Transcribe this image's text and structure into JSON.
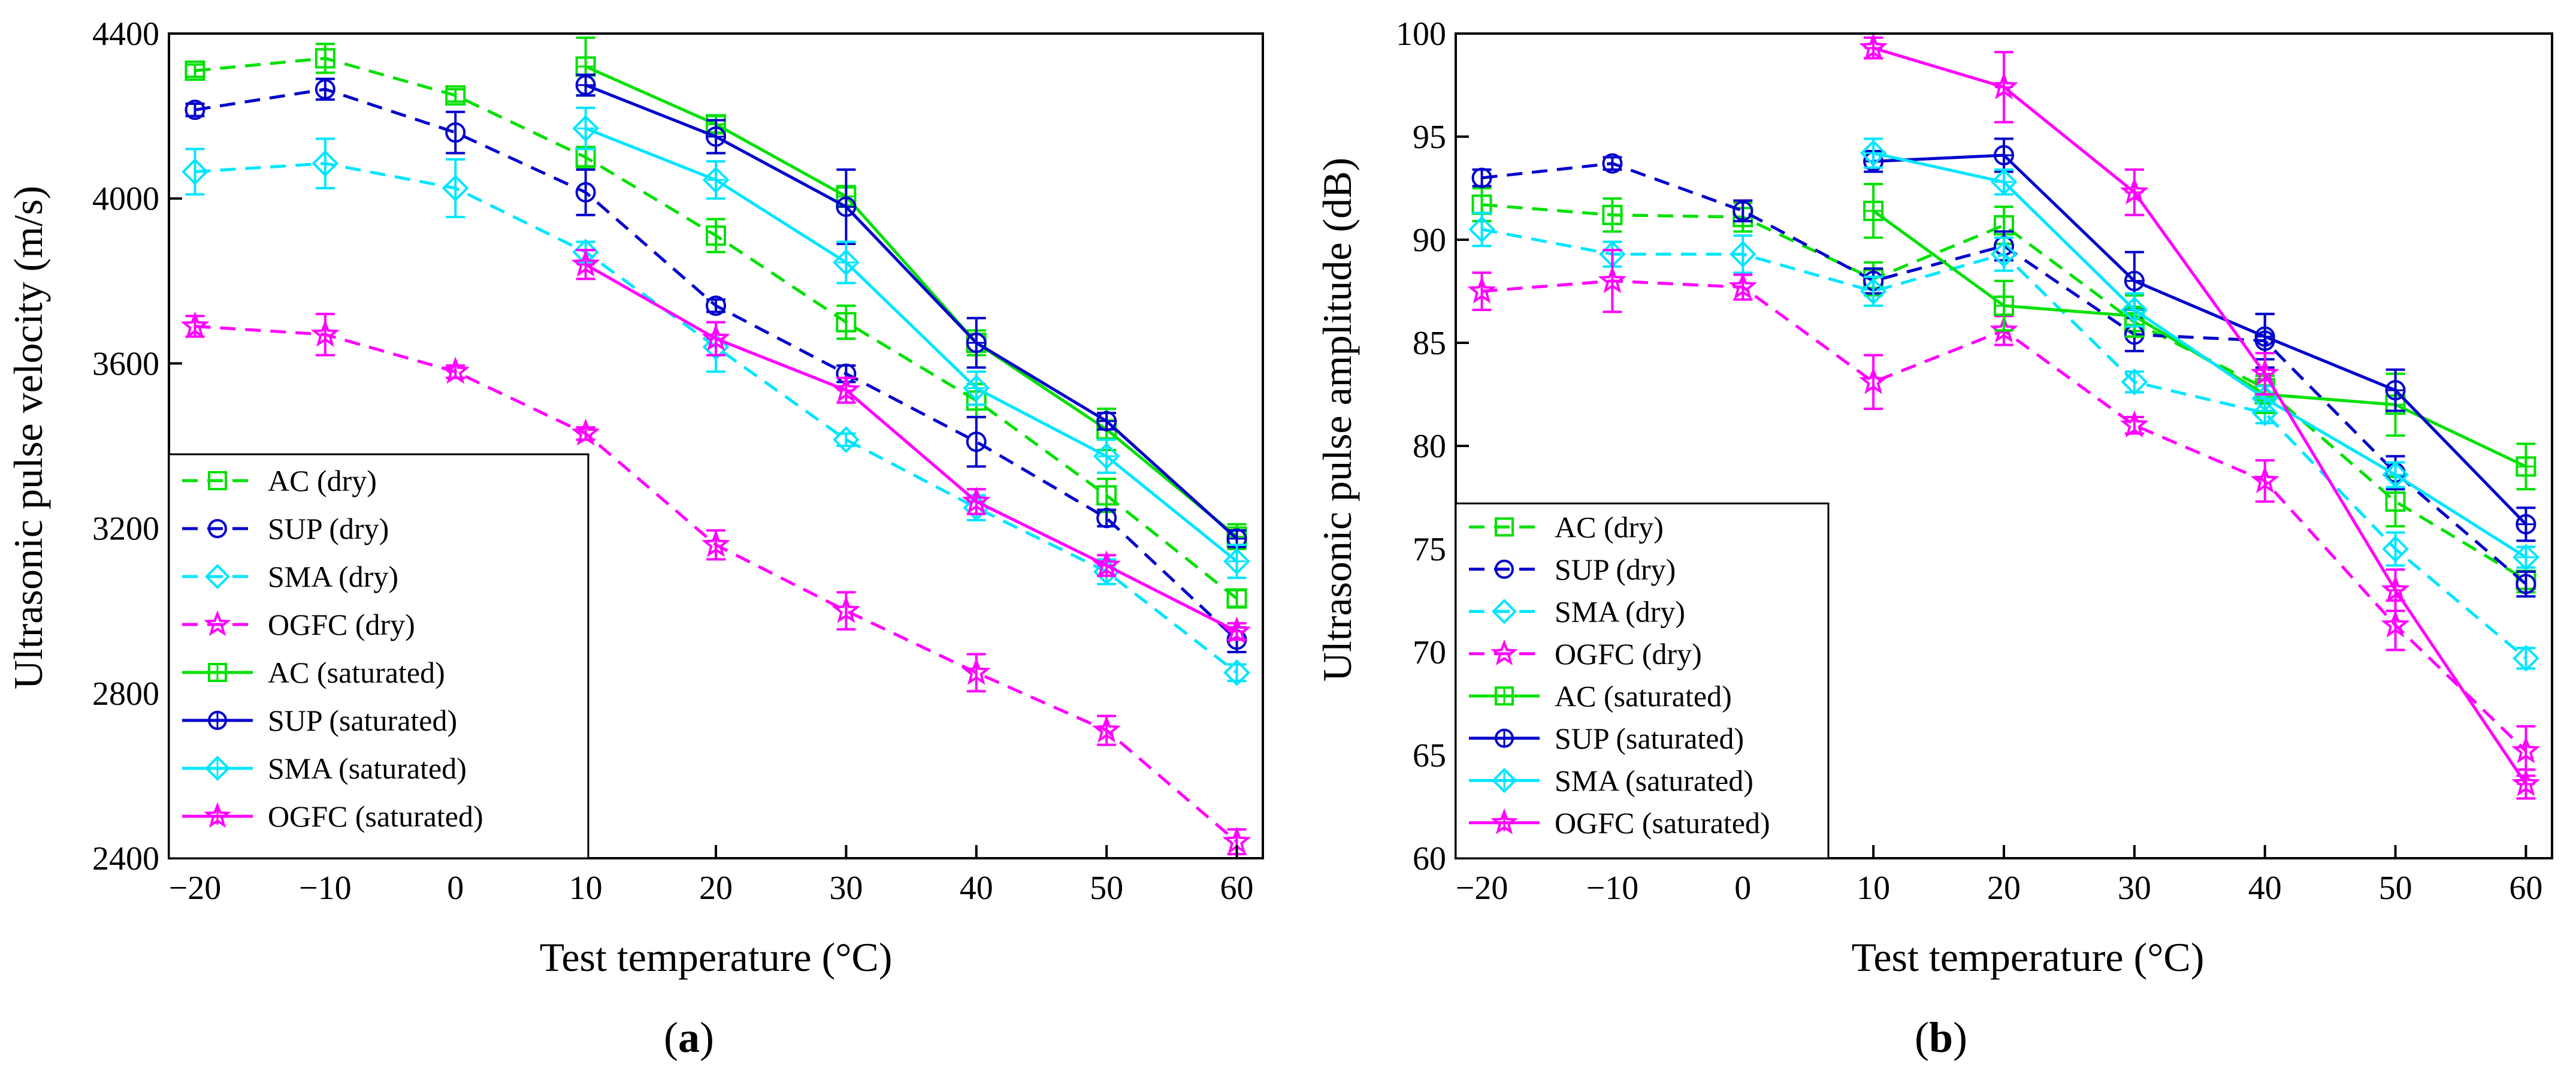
{
  "panels": [
    {
      "caption_open": "(",
      "caption_letter": "a",
      "caption_close": ")",
      "legend_entries": [
        {
          "label": "AC (dry)"
        },
        {
          "label": "SUP (dry)"
        },
        {
          "label": "SMA (dry)"
        },
        {
          "label": "OGFC (dry)"
        },
        {
          "label": "AC (saturated)"
        },
        {
          "label": "SUP (saturated)"
        },
        {
          "label": "SMA (saturated)"
        },
        {
          "label": "OGFC (saturated)"
        }
      ]
    },
    {
      "caption_open": "(",
      "caption_letter": "b",
      "caption_close": ")",
      "legend_entries": [
        {
          "label": "AC (dry)"
        },
        {
          "label": "SUP (dry)"
        },
        {
          "label": "SMA (dry)"
        },
        {
          "label": "OGFC (dry)"
        },
        {
          "label": "AC (saturated)"
        },
        {
          "label": "SUP (saturated)"
        },
        {
          "label": "SMA (saturated)"
        },
        {
          "label": "OGFC (saturated)"
        }
      ]
    }
  ],
  "colors": {
    "AC": "#00e000",
    "SUP": "#0000cc",
    "SMA": "#00e5ff",
    "OGFC": "#ff00ff"
  },
  "chart_data": [
    {
      "type": "line",
      "title": "",
      "xlabel": "Test temperature (°C)",
      "ylabel": "Ultrasonic pulse velocity (m/s)",
      "xlim": [
        -22,
        62
      ],
      "ylim": [
        2400,
        4400
      ],
      "xticks": [
        -20,
        -10,
        0,
        10,
        20,
        30,
        40,
        50,
        60
      ],
      "yticks": [
        2400,
        2800,
        3200,
        3600,
        4000,
        4400
      ],
      "xtick_labels": [
        "−20",
        "−10",
        "0",
        "10",
        "20",
        "30",
        "40",
        "50",
        "60"
      ],
      "ytick_labels": [
        "2400",
        "2800",
        "3200",
        "3600",
        "4000",
        "4400"
      ],
      "legend_position": "bottom-left",
      "series": [
        {
          "name": "AC (dry)",
          "mix": "AC",
          "dash": true,
          "marker": "square",
          "x": [
            -20,
            -10,
            0,
            10,
            20,
            30,
            40,
            50,
            60
          ],
          "y": [
            4310,
            4340,
            4250,
            4100,
            3910,
            3700,
            3510,
            3280,
            3030
          ],
          "err": [
            15,
            35,
            15,
            25,
            40,
            40,
            40,
            40,
            20
          ]
        },
        {
          "name": "SUP (dry)",
          "mix": "SUP",
          "dash": true,
          "marker": "circle",
          "x": [
            -20,
            -10,
            0,
            10,
            20,
            30,
            40,
            50,
            60
          ],
          "y": [
            4215,
            4265,
            4160,
            4015,
            3740,
            3575,
            3410,
            3225,
            2930
          ],
          "err": [
            15,
            25,
            50,
            55,
            15,
            20,
            60,
            20,
            30
          ]
        },
        {
          "name": "SMA (dry)",
          "mix": "SMA",
          "dash": true,
          "marker": "diamond",
          "x": [
            -20,
            -10,
            0,
            10,
            20,
            30,
            40,
            50,
            60
          ],
          "y": [
            4065,
            4085,
            4025,
            3870,
            3640,
            3415,
            3250,
            3095,
            2850
          ],
          "err": [
            55,
            60,
            70,
            25,
            60,
            15,
            30,
            30,
            20
          ]
        },
        {
          "name": "OGFC (dry)",
          "mix": "OGFC",
          "dash": true,
          "marker": "star",
          "x": [
            -20,
            -10,
            0,
            10,
            20,
            30,
            40,
            50,
            60
          ],
          "y": [
            3690,
            3670,
            3580,
            3430,
            3160,
            3000,
            2850,
            2710,
            2440
          ],
          "err": [
            25,
            50,
            15,
            15,
            35,
            45,
            45,
            35,
            30
          ]
        },
        {
          "name": "AC (saturated)",
          "mix": "AC",
          "dash": false,
          "marker": "square-cross",
          "x": [
            10,
            20,
            30,
            40,
            50,
            60
          ],
          "y": [
            4320,
            4180,
            4005,
            3650,
            3440,
            3180
          ],
          "err": [
            70,
            20,
            25,
            30,
            50,
            30
          ]
        },
        {
          "name": "SUP (saturated)",
          "mix": "SUP",
          "dash": false,
          "marker": "circle-cross",
          "x": [
            10,
            20,
            30,
            40,
            50,
            60
          ],
          "y": [
            4275,
            4150,
            3980,
            3650,
            3460,
            3175
          ],
          "err": [
            25,
            40,
            90,
            60,
            20,
            20
          ]
        },
        {
          "name": "SMA (saturated)",
          "mix": "SMA",
          "dash": false,
          "marker": "diamond-cross",
          "x": [
            10,
            20,
            30,
            40,
            50,
            60
          ],
          "y": [
            4170,
            4045,
            3845,
            3540,
            3375,
            3120
          ],
          "err": [
            50,
            45,
            50,
            40,
            40,
            40
          ]
        },
        {
          "name": "OGFC (saturated)",
          "mix": "OGFC",
          "dash": false,
          "marker": "star-cross",
          "x": [
            10,
            20,
            30,
            40,
            50,
            60
          ],
          "y": [
            3840,
            3660,
            3535,
            3265,
            3110,
            2950
          ],
          "err": [
            35,
            40,
            30,
            30,
            25,
            20
          ]
        }
      ]
    },
    {
      "type": "line",
      "title": "",
      "xlabel": "Test temperature (°C)",
      "ylabel": "Ultrasonic pulse amplitude (dB)",
      "xlim": [
        -22,
        62
      ],
      "ylim": [
        60,
        100
      ],
      "xticks": [
        -20,
        -10,
        0,
        10,
        20,
        30,
        40,
        50,
        60
      ],
      "yticks": [
        60,
        65,
        70,
        75,
        80,
        85,
        90,
        95,
        100
      ],
      "xtick_labels": [
        "−20",
        "−10",
        "0",
        "10",
        "20",
        "30",
        "40",
        "50",
        "60"
      ],
      "ytick_labels": [
        "60",
        "65",
        "70",
        "75",
        "80",
        "85",
        "90",
        "95",
        "100"
      ],
      "legend_position": "bottom-left",
      "series": [
        {
          "name": "AC (dry)",
          "mix": "AC",
          "dash": true,
          "marker": "square",
          "x": [
            -20,
            -10,
            0,
            10,
            20,
            30,
            40,
            50,
            60
          ],
          "y": [
            91.7,
            91.2,
            91.1,
            88.1,
            90.7,
            86.0,
            82.8,
            77.3,
            73.5
          ],
          "err": [
            0.8,
            0.8,
            0.7,
            0.8,
            0.9,
            0.7,
            0.6,
            1.2,
            0.6
          ]
        },
        {
          "name": "SUP (dry)",
          "mix": "SUP",
          "dash": true,
          "marker": "circle",
          "x": [
            -20,
            -10,
            0,
            10,
            20,
            30,
            40,
            50,
            60
          ],
          "y": [
            93.0,
            93.7,
            91.4,
            88.0,
            89.7,
            85.4,
            85.1,
            78.7,
            73.3
          ],
          "err": [
            0.4,
            0.3,
            0.5,
            0.6,
            0.7,
            0.8,
            1.3,
            0.8,
            0.6
          ]
        },
        {
          "name": "SMA (dry)",
          "mix": "SMA",
          "dash": true,
          "marker": "diamond",
          "x": [
            -20,
            -10,
            0,
            10,
            20,
            30,
            40,
            50,
            60
          ],
          "y": [
            90.5,
            89.3,
            89.3,
            87.5,
            89.3,
            83.1,
            81.6,
            75.0,
            69.7
          ],
          "err": [
            0.8,
            0.6,
            0.9,
            0.7,
            0.8,
            0.5,
            0.5,
            0.8,
            0.5
          ]
        },
        {
          "name": "OGFC (dry)",
          "mix": "OGFC",
          "dash": true,
          "marker": "star",
          "x": [
            -20,
            -10,
            0,
            10,
            20,
            30,
            40,
            50,
            60
          ],
          "y": [
            87.5,
            88.0,
            87.7,
            83.1,
            85.6,
            81.0,
            78.3,
            71.3,
            65.2
          ],
          "err": [
            0.9,
            1.5,
            0.6,
            1.3,
            0.7,
            0.4,
            1.0,
            1.2,
            1.2
          ]
        },
        {
          "name": "AC (saturated)",
          "mix": "AC",
          "dash": false,
          "marker": "square-cross",
          "x": [
            10,
            20,
            30,
            40,
            50,
            60
          ],
          "y": [
            91.4,
            86.8,
            86.3,
            82.5,
            82.0,
            79.0
          ],
          "err": [
            1.3,
            1.2,
            1.0,
            0.9,
            1.5,
            1.1
          ]
        },
        {
          "name": "SUP (saturated)",
          "mix": "SUP",
          "dash": false,
          "marker": "circle-cross",
          "x": [
            10,
            20,
            30,
            40,
            50,
            60
          ],
          "y": [
            93.8,
            94.1,
            88.0,
            85.3,
            82.7,
            76.2
          ],
          "err": [
            0.5,
            0.8,
            1.4,
            1.1,
            1.0,
            0.8
          ]
        },
        {
          "name": "SMA (saturated)",
          "mix": "SMA",
          "dash": false,
          "marker": "diamond-cross",
          "x": [
            10,
            20,
            30,
            40,
            50,
            60
          ],
          "y": [
            94.2,
            92.8,
            86.6,
            82.3,
            78.6,
            74.6
          ],
          "err": [
            0.7,
            0.6,
            0.8,
            0.6,
            0.6,
            0.5
          ]
        },
        {
          "name": "OGFC (saturated)",
          "mix": "OGFC",
          "dash": false,
          "marker": "star-cross",
          "x": [
            10,
            20,
            30,
            40,
            50,
            60
          ],
          "y": [
            99.3,
            97.4,
            92.3,
            83.5,
            73.0,
            63.6
          ],
          "err": [
            0.5,
            1.7,
            1.1,
            1.0,
            1.0,
            0.7
          ]
        }
      ]
    }
  ]
}
